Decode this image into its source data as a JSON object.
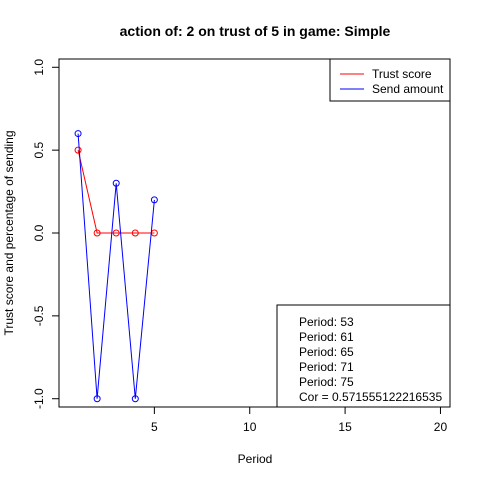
{
  "chart_data": {
    "type": "line",
    "title": "action of:  2  on trust of  5 in game:  Simple",
    "xlabel": "Period",
    "ylabel": "Trust score and percentage of sending",
    "xlim": [
      0,
      20.5
    ],
    "ylim": [
      -1.05,
      1.05
    ],
    "x_ticks": [
      5,
      10,
      15,
      20
    ],
    "y_ticks": [
      -1.0,
      -0.5,
      0.0,
      0.5,
      1.0
    ],
    "x_tick_labels": [
      "5",
      "10",
      "15",
      "20"
    ],
    "y_tick_labels": [
      "-1.0",
      "-0.5",
      "0.0",
      "0.5",
      "1.0"
    ],
    "grid": false,
    "legend_position": "top-right",
    "series": [
      {
        "name": "Trust score",
        "color": "#ff0000",
        "x": [
          1,
          2,
          3,
          4,
          5
        ],
        "y": [
          0.5,
          0.0,
          0.0,
          0.0,
          0.0
        ]
      },
      {
        "name": "Send amount",
        "color": "#0000ff",
        "x": [
          1,
          2,
          3,
          4,
          5
        ],
        "y": [
          0.6,
          -1.0,
          0.3,
          -1.0,
          0.2
        ]
      }
    ],
    "annotation_lines": [
      "Period:  53",
      "Period:  61",
      "Period:  65",
      "Period:  71",
      "Period:  75",
      "Cor =  0.571555122216535"
    ]
  }
}
